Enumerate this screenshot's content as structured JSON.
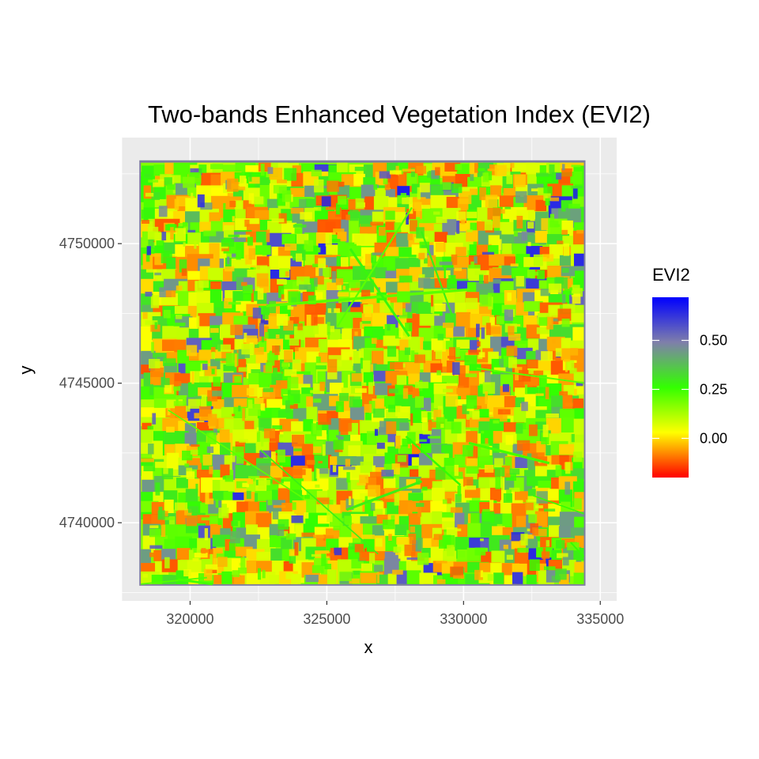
{
  "chart_data": {
    "type": "heatmap",
    "title": "Two-bands Enhanced Vegetation Index (EVI2)",
    "xlabel": "x",
    "ylabel": "y",
    "xlim": [
      317500,
      335600
    ],
    "ylim": [
      4737200,
      4753800
    ],
    "raster_extent": {
      "x": [
        318200,
        334400
      ],
      "y": [
        4737800,
        4752900
      ]
    },
    "x_ticks": [
      320000,
      325000,
      330000,
      335000
    ],
    "x_tick_labels": [
      "320000",
      "325000",
      "330000",
      "335000"
    ],
    "y_ticks": [
      4740000,
      4745000,
      4750000
    ],
    "y_tick_labels": [
      "4740000",
      "4745000",
      "4750000"
    ],
    "grid": true,
    "legend": {
      "title": "EVI2",
      "placement": "right",
      "range": [
        -0.2,
        0.72
      ],
      "breaks": [
        0.5,
        0.25,
        0.0
      ],
      "break_labels": [
        "0.50",
        "0.25",
        "0.00"
      ],
      "colors": [
        "#ff0000",
        "#ffff00",
        "#33ff00",
        "#7f7faa",
        "#0000ff"
      ]
    },
    "panel_background": "#ebebeb",
    "grid_color": "#ffffff",
    "raster_border_color": "#7f7f9f"
  }
}
